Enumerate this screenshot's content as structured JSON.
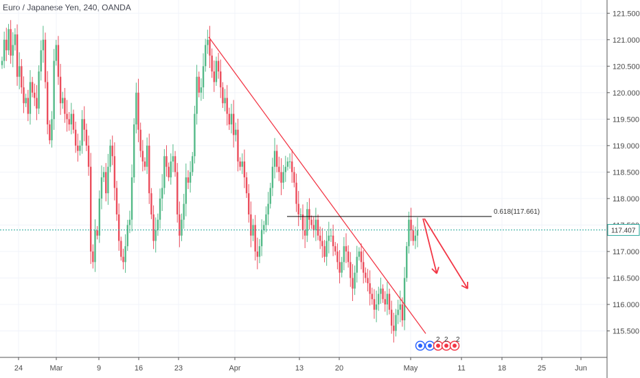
{
  "header": {
    "symbol": "Euro / Japanese Yen",
    "interval": "240",
    "broker": "OANDA",
    "sep1": ", ",
    "sep2": ", "
  },
  "colors": {
    "up": "#53b987",
    "down": "#eb4d5c",
    "trendline": "#f23645",
    "fib_line": "#000000",
    "current_price_line": "#26a69a",
    "grid": "#f0f3fa",
    "axis": "#555555"
  },
  "icons": [
    "earnings-icon",
    "earnings-icon",
    "earnings-icon",
    "earnings-icon",
    "earnings-icon"
  ],
  "chart_data": {
    "type": "candlestick",
    "yticks": [
      "121.500",
      "121.000",
      "120.500",
      "120.000",
      "119.500",
      "119.000",
      "118.500",
      "118.000",
      "117.500",
      "117.000",
      "116.500",
      "116.000",
      "115.500"
    ],
    "ylim": [
      115.0,
      121.75
    ],
    "xticks": [
      "24",
      "Mar",
      "9",
      "16",
      "23",
      "Apr",
      "13",
      "20",
      "May",
      "11",
      "18",
      "25",
      "Jun"
    ],
    "current_price": "117.407",
    "fib_label": "0.618(117.661)",
    "fib_level": 117.661,
    "markers": [
      "2",
      "2",
      "2"
    ],
    "closes": [
      120.6,
      121.0,
      120.8,
      121.2,
      120.7,
      120.9,
      121.1,
      120.3,
      120.5,
      120.1,
      119.8,
      119.9,
      119.6,
      120.2,
      120.0,
      119.9,
      119.7,
      120.4,
      120.8,
      121.0,
      120.2,
      119.4,
      119.1,
      119.5,
      120.6,
      120.9,
      120.3,
      119.8,
      119.9,
      119.6,
      119.5,
      119.4,
      119.6,
      119.3,
      119.0,
      118.9,
      119.0,
      119.5,
      119.3,
      119.0,
      118.6,
      117.0,
      116.8,
      117.4,
      117.3,
      118.0,
      118.4,
      118.5,
      118.1,
      118.6,
      119.0,
      118.8,
      118.2,
      117.7,
      117.2,
      116.9,
      116.8,
      117.1,
      117.5,
      117.6,
      118.4,
      119.4,
      120.0,
      119.3,
      118.9,
      118.7,
      118.6,
      119.0,
      118.1,
      117.7,
      117.2,
      117.4,
      117.6,
      118.0,
      118.2,
      118.8,
      118.6,
      118.4,
      118.7,
      118.8,
      118.5,
      117.7,
      117.3,
      117.6,
      117.9,
      118.4,
      118.3,
      118.5,
      118.8,
      119.6,
      120.3,
      120.0,
      120.1,
      120.5,
      120.9,
      121.0,
      120.7,
      120.4,
      120.2,
      120.6,
      120.4,
      120.1,
      119.8,
      119.9,
      119.6,
      119.4,
      119.6,
      119.2,
      119.3,
      118.7,
      118.6,
      118.7,
      118.4,
      118.1,
      117.7,
      117.3,
      117.5,
      117.0,
      116.9,
      117.1,
      117.4,
      117.5,
      117.7,
      117.9,
      118.2,
      118.6,
      118.9,
      118.6,
      118.5,
      118.3,
      118.5,
      118.6,
      118.7,
      118.7,
      118.5,
      118.3,
      117.9,
      117.7,
      117.7,
      117.4,
      117.3,
      117.8,
      117.6,
      117.5,
      117.4,
      117.6,
      117.3,
      117.2,
      117.1,
      116.9,
      117.2,
      117.3,
      117.3,
      117.1,
      117.0,
      116.8,
      116.6,
      116.8,
      117.1,
      117.0,
      116.8,
      116.5,
      116.3,
      116.6,
      116.9,
      117.0,
      116.8,
      116.6,
      116.5,
      116.4,
      116.2,
      116.1,
      115.9,
      116.0,
      116.2,
      116.3,
      116.1,
      116.0,
      116.2,
      115.9,
      115.6,
      115.5,
      115.8,
      115.9,
      116.0,
      115.7,
      116.5,
      117.1,
      117.6,
      117.4,
      117.2,
      117.3,
      117.4
    ]
  }
}
